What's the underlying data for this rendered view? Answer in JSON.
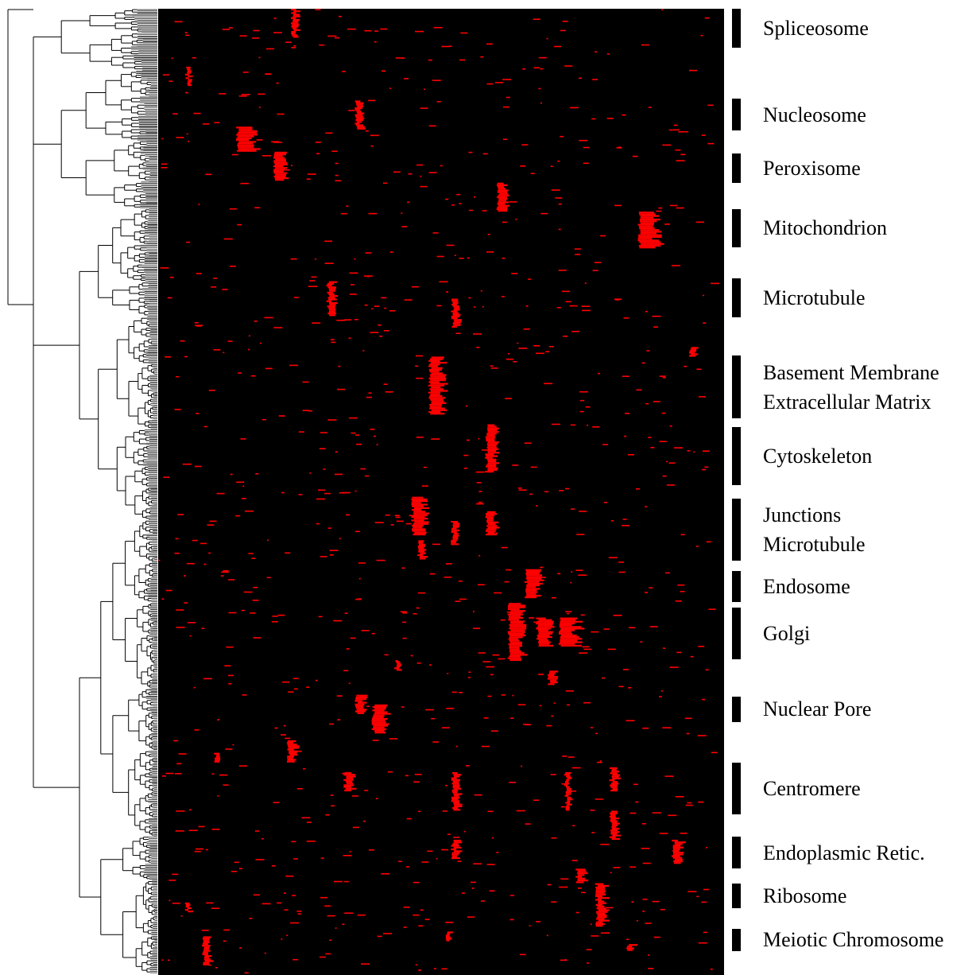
{
  "chart_data": {
    "type": "heatmap",
    "colors": {
      "background": "#000000",
      "cell": "#ff0000"
    },
    "clusters": [
      {
        "lines": [
          "Spliceosome"
        ],
        "rows": [
          0.0,
          0.04
        ]
      },
      {
        "lines": [
          "Nucleosome"
        ],
        "rows": [
          0.093,
          0.126
        ]
      },
      {
        "lines": [
          "Peroxisome"
        ],
        "rows": [
          0.15,
          0.18
        ]
      },
      {
        "lines": [
          "Mitochondrion"
        ],
        "rows": [
          0.207,
          0.247
        ]
      },
      {
        "lines": [
          "Microtubule"
        ],
        "rows": [
          0.279,
          0.319
        ]
      },
      {
        "lines": [
          "Basement Membrane",
          "Extracellular Matrix"
        ],
        "rows": [
          0.359,
          0.424
        ]
      },
      {
        "lines": [
          "Cytoskeleton"
        ],
        "rows": [
          0.433,
          0.493
        ]
      },
      {
        "lines": [
          "Junctions",
          "Microtubule"
        ],
        "rows": [
          0.507,
          0.571
        ]
      },
      {
        "lines": [
          "Endosome"
        ],
        "rows": [
          0.582,
          0.614
        ]
      },
      {
        "lines": [
          "Golgi"
        ],
        "rows": [
          0.62,
          0.673
        ]
      },
      {
        "lines": [
          "Nuclear Pore"
        ],
        "rows": [
          0.712,
          0.738
        ]
      },
      {
        "lines": [
          "Centromere"
        ],
        "rows": [
          0.78,
          0.834
        ]
      },
      {
        "lines": [
          "Endoplasmic Retic."
        ],
        "rows": [
          0.857,
          0.89
        ]
      },
      {
        "lines": [
          "Ribosome"
        ],
        "rows": [
          0.905,
          0.931
        ]
      },
      {
        "lines": [
          "Meiotic Chromosome"
        ],
        "rows": [
          0.952,
          0.975
        ]
      }
    ],
    "blocks": [
      {
        "x": [
          0.237,
          0.25
        ],
        "y": [
          0.0,
          0.03
        ]
      },
      {
        "x": [
          0.05,
          0.06
        ],
        "y": [
          0.06,
          0.08
        ]
      },
      {
        "x": [
          0.35,
          0.365
        ],
        "y": [
          0.095,
          0.125
        ]
      },
      {
        "x": [
          0.14,
          0.18
        ],
        "y": [
          0.122,
          0.148
        ]
      },
      {
        "x": [
          0.205,
          0.23
        ],
        "y": [
          0.148,
          0.178
        ]
      },
      {
        "x": [
          0.6,
          0.62
        ],
        "y": [
          0.18,
          0.21
        ]
      },
      {
        "x": [
          0.85,
          0.89
        ],
        "y": [
          0.21,
          0.248
        ]
      },
      {
        "x": [
          0.3,
          0.315
        ],
        "y": [
          0.282,
          0.318
        ]
      },
      {
        "x": [
          0.52,
          0.535
        ],
        "y": [
          0.3,
          0.33
        ]
      },
      {
        "x": [
          0.48,
          0.51
        ],
        "y": [
          0.36,
          0.42
        ]
      },
      {
        "x": [
          0.94,
          0.958
        ],
        "y": [
          0.35,
          0.36
        ]
      },
      {
        "x": [
          0.58,
          0.6
        ],
        "y": [
          0.43,
          0.48
        ]
      },
      {
        "x": [
          0.45,
          0.48
        ],
        "y": [
          0.505,
          0.545
        ]
      },
      {
        "x": [
          0.52,
          0.535
        ],
        "y": [
          0.53,
          0.555
        ]
      },
      {
        "x": [
          0.46,
          0.475
        ],
        "y": [
          0.55,
          0.57
        ]
      },
      {
        "x": [
          0.58,
          0.6
        ],
        "y": [
          0.52,
          0.545
        ]
      },
      {
        "x": [
          0.65,
          0.68
        ],
        "y": [
          0.58,
          0.61
        ]
      },
      {
        "x": [
          0.62,
          0.65
        ],
        "y": [
          0.615,
          0.675
        ]
      },
      {
        "x": [
          0.67,
          0.7
        ],
        "y": [
          0.63,
          0.66
        ]
      },
      {
        "x": [
          0.71,
          0.75
        ],
        "y": [
          0.63,
          0.66
        ]
      },
      {
        "x": [
          0.42,
          0.43
        ],
        "y": [
          0.675,
          0.685
        ]
      },
      {
        "x": [
          0.69,
          0.71
        ],
        "y": [
          0.685,
          0.7
        ]
      },
      {
        "x": [
          0.35,
          0.37
        ],
        "y": [
          0.71,
          0.73
        ]
      },
      {
        "x": [
          0.38,
          0.41
        ],
        "y": [
          0.72,
          0.75
        ]
      },
      {
        "x": [
          0.23,
          0.25
        ],
        "y": [
          0.757,
          0.78
        ]
      },
      {
        "x": [
          0.1,
          0.11
        ],
        "y": [
          0.77,
          0.78
        ]
      },
      {
        "x": [
          0.33,
          0.35
        ],
        "y": [
          0.79,
          0.81
        ]
      },
      {
        "x": [
          0.52,
          0.535
        ],
        "y": [
          0.79,
          0.83
        ]
      },
      {
        "x": [
          0.72,
          0.73
        ],
        "y": [
          0.79,
          0.83
        ]
      },
      {
        "x": [
          0.8,
          0.815
        ],
        "y": [
          0.785,
          0.81
        ]
      },
      {
        "x": [
          0.8,
          0.815
        ],
        "y": [
          0.83,
          0.86
        ]
      },
      {
        "x": [
          0.91,
          0.93
        ],
        "y": [
          0.86,
          0.885
        ]
      },
      {
        "x": [
          0.74,
          0.76
        ],
        "y": [
          0.89,
          0.905
        ]
      },
      {
        "x": [
          0.775,
          0.795
        ],
        "y": [
          0.905,
          0.95
        ]
      },
      {
        "x": [
          0.08,
          0.095
        ],
        "y": [
          0.96,
          0.99
        ]
      },
      {
        "x": [
          0.05,
          0.06
        ],
        "y": [
          0.925,
          0.935
        ]
      },
      {
        "x": [
          0.51,
          0.52
        ],
        "y": [
          0.955,
          0.965
        ]
      },
      {
        "x": [
          0.83,
          0.845
        ],
        "y": [
          0.968,
          0.975
        ]
      },
      {
        "x": [
          0.52,
          0.535
        ],
        "y": [
          0.86,
          0.88
        ]
      }
    ]
  }
}
